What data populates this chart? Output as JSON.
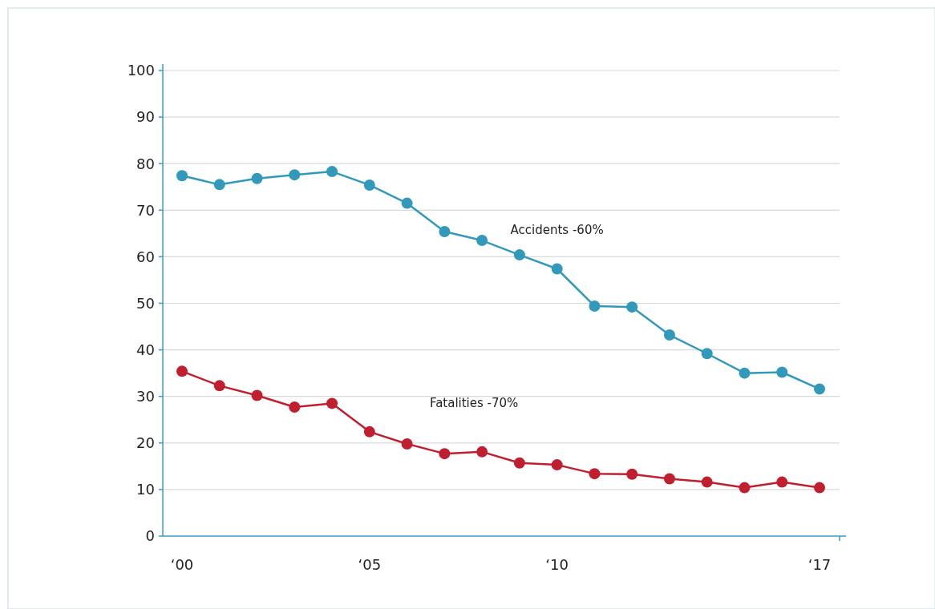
{
  "chart_data": {
    "type": "line",
    "categories": [
      "‘00",
      null,
      null,
      null,
      null,
      "‘05",
      null,
      null,
      null,
      null,
      "‘10",
      null,
      null,
      null,
      null,
      null,
      null,
      "‘17"
    ],
    "series": [
      {
        "name": "Accidents -60%",
        "color": "#3399bb",
        "values": [
          77.4,
          75.5,
          76.8,
          77.6,
          78.3,
          75.4,
          71.5,
          65.4,
          63.5,
          60.4,
          57.4,
          49.4,
          49.2,
          43.2,
          39.2,
          35.0,
          35.2,
          31.6
        ]
      },
      {
        "name": "Fatalities -70%",
        "color": "#c01f30",
        "values": [
          35.4,
          32.3,
          30.2,
          27.7,
          28.5,
          22.4,
          19.8,
          17.7,
          18.1,
          15.7,
          15.3,
          13.4,
          13.3,
          12.3,
          11.6,
          10.4,
          11.6,
          10.4
        ]
      }
    ],
    "ylim": [
      0,
      100
    ],
    "yticks": [
      0,
      10,
      20,
      30,
      40,
      50,
      60,
      70,
      80,
      90,
      100
    ],
    "grid": "y",
    "marker": "circle"
  }
}
